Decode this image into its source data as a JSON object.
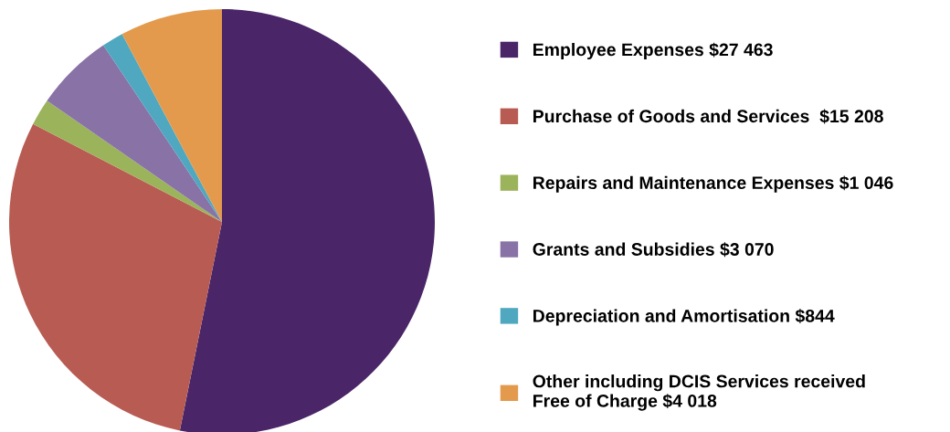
{
  "chart_data": {
    "type": "pie",
    "categories": [
      "Employee Expenses $27 463",
      "Purchase of Goods and Services  $15 208",
      "Repairs and Maintenance Expenses $1 046",
      "Grants and Subsidies $3 070",
      "Depreciation and Amortisation $844",
      "Other including DCIS Services received\nFree of Charge $4 018"
    ],
    "values": [
      27463,
      15208,
      1046,
      3070,
      844,
      4018
    ],
    "colors": [
      "#4a2568",
      "#b85b52",
      "#9bb35a",
      "#8872a6",
      "#4fa8bf",
      "#e49a4c"
    ],
    "legend": "right"
  }
}
